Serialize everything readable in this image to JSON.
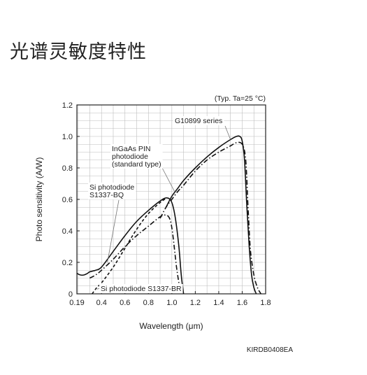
{
  "page": {
    "title": "光谱灵敏度特性",
    "code": "KIRDB0408EA"
  },
  "chart_data": {
    "type": "line",
    "title": "",
    "condition": "(Typ. Ta=25 °C)",
    "xlabel": "Wavelength (μm)",
    "ylabel": "Photo sensitivity (A/W)",
    "xlim": [
      0.19,
      1.8
    ],
    "ylim": [
      0,
      1.2
    ],
    "x_ticks": [
      0.19,
      0.4,
      0.6,
      0.8,
      1.0,
      1.2,
      1.4,
      1.6,
      1.8
    ],
    "x_tick_labels": [
      "0.19",
      "0.4",
      "0.6",
      "0.8",
      "1.0",
      "1.2",
      "1.4",
      "1.6",
      "1.8"
    ],
    "y_ticks": [
      0,
      0.2,
      0.4,
      0.6,
      0.8,
      1.0,
      1.2
    ],
    "y_tick_labels": [
      "0",
      "0.2",
      "0.4",
      "0.6",
      "0.8",
      "1.0",
      "1.2"
    ],
    "grid": true,
    "series": [
      {
        "name": "G10899 series",
        "style": "solid",
        "x": [
          0.95,
          1.0,
          1.05,
          1.1,
          1.2,
          1.3,
          1.4,
          1.5,
          1.55,
          1.58,
          1.6,
          1.62,
          1.64,
          1.66,
          1.68,
          1.7,
          1.72
        ],
        "y": [
          0.55,
          0.62,
          0.67,
          0.72,
          0.8,
          0.87,
          0.93,
          0.98,
          1.0,
          1.0,
          0.97,
          0.85,
          0.55,
          0.3,
          0.12,
          0.04,
          0.0
        ]
      },
      {
        "name": "InGaAs PIN photodiode (standard type)",
        "style": "dash-dot",
        "x": [
          0.9,
          0.95,
          1.0,
          1.05,
          1.1,
          1.2,
          1.3,
          1.4,
          1.5,
          1.55,
          1.6,
          1.63,
          1.65,
          1.67,
          1.7,
          1.73,
          1.76
        ],
        "y": [
          0.48,
          0.55,
          0.6,
          0.65,
          0.69,
          0.78,
          0.85,
          0.9,
          0.94,
          0.96,
          0.95,
          0.85,
          0.55,
          0.28,
          0.12,
          0.04,
          0.0
        ]
      },
      {
        "name": "Si photodiode S1337-BQ",
        "style": "solid",
        "x": [
          0.19,
          0.22,
          0.25,
          0.28,
          0.3,
          0.35,
          0.4,
          0.5,
          0.6,
          0.7,
          0.8,
          0.9,
          0.96,
          1.0,
          1.03,
          1.06,
          1.08,
          1.1
        ],
        "y": [
          0.13,
          0.12,
          0.12,
          0.13,
          0.14,
          0.15,
          0.17,
          0.27,
          0.37,
          0.46,
          0.53,
          0.59,
          0.61,
          0.58,
          0.48,
          0.3,
          0.12,
          0.0
        ]
      },
      {
        "name": "Si photodiode S1337-BR",
        "style": "dashed",
        "x": [
          0.32,
          0.36,
          0.4,
          0.5,
          0.6,
          0.7,
          0.8,
          0.9,
          0.96
        ],
        "y": [
          0.0,
          0.04,
          0.07,
          0.17,
          0.29,
          0.41,
          0.51,
          0.58,
          0.61
        ]
      },
      {
        "name": "",
        "style": "dash-dot",
        "x": [
          0.3,
          0.35,
          0.4,
          0.5,
          0.6,
          0.7,
          0.8,
          0.9,
          0.95,
          0.98,
          1.0,
          1.02,
          1.04,
          1.06,
          1.08
        ],
        "y": [
          0.1,
          0.12,
          0.15,
          0.22,
          0.3,
          0.37,
          0.43,
          0.49,
          0.5,
          0.48,
          0.42,
          0.3,
          0.17,
          0.07,
          0.0
        ]
      }
    ],
    "annotations": [
      {
        "lines": [
          "G10899 series"
        ],
        "target": [
          1.5,
          0.98
        ]
      },
      {
        "lines": [
          "InGaAs PIN",
          "photodiode",
          "(standard type)"
        ],
        "target": [
          1.03,
          0.64
        ]
      },
      {
        "lines": [
          "Si photodiode",
          "S1337-BQ"
        ],
        "target": [
          0.45,
          0.2
        ]
      },
      {
        "lines": [
          "Si photodiode S1337-BR"
        ],
        "target": [
          0.36,
          0.03
        ]
      }
    ]
  }
}
